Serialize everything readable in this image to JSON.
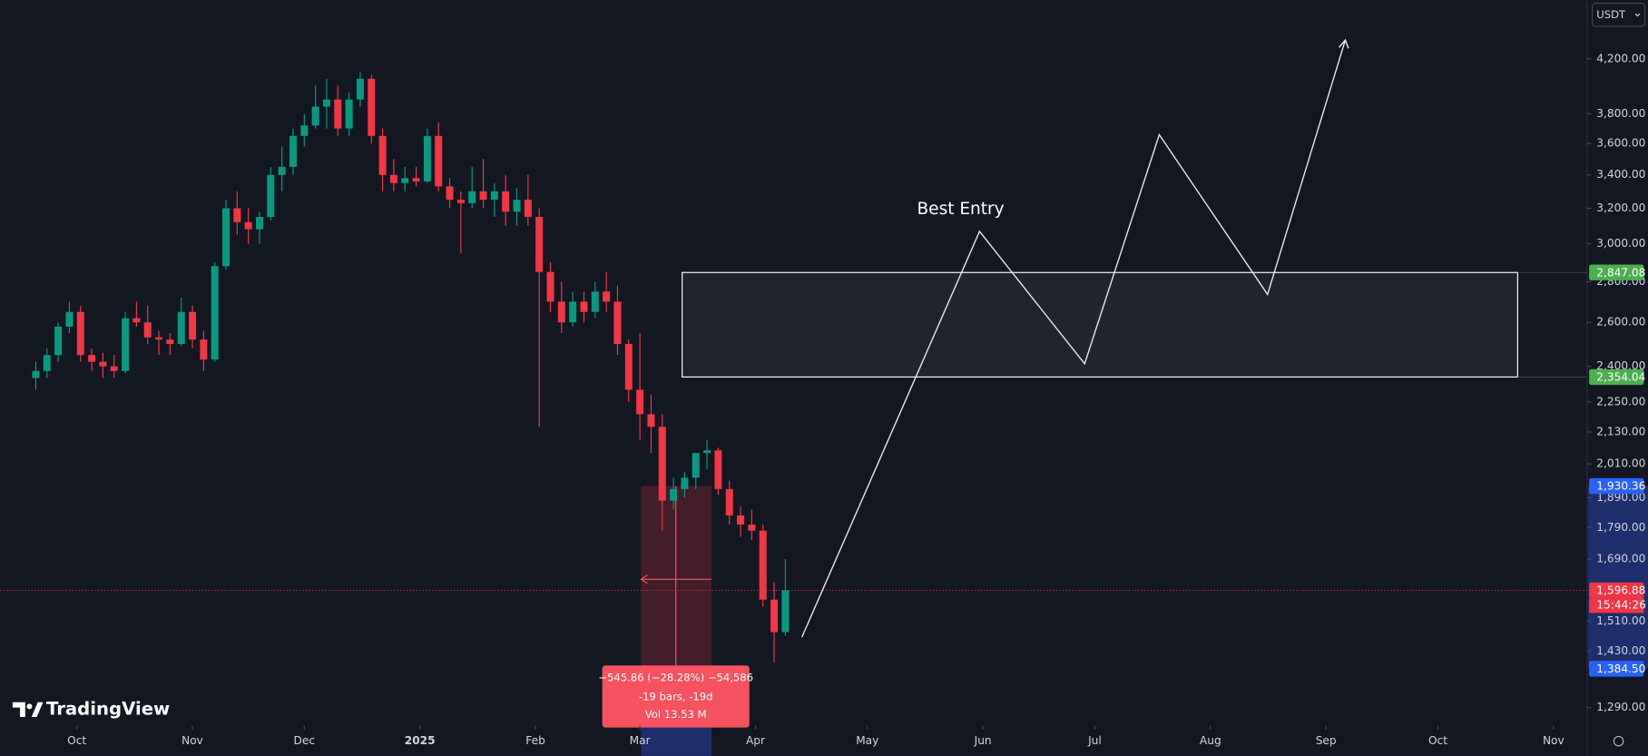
{
  "chart_data": {
    "type": "candlestick",
    "log_scale": true,
    "x": [
      -11,
      -8,
      -5,
      -2,
      1,
      4,
      7,
      10,
      13,
      16,
      19,
      22,
      25,
      28,
      31,
      34,
      37,
      40,
      43,
      46,
      49,
      52,
      55,
      58,
      61,
      64,
      67,
      70,
      73,
      76,
      79,
      82,
      85,
      88,
      91,
      94,
      97,
      100,
      103,
      106,
      109,
      112,
      115,
      118,
      121,
      124,
      127,
      130,
      133,
      136,
      139,
      142,
      145,
      148,
      151,
      154,
      157,
      160,
      163,
      166,
      169,
      172,
      175,
      178,
      181,
      184,
      187,
      190
    ],
    "open": [
      2350,
      2380,
      2450,
      2580,
      2650,
      2450,
      2420,
      2400,
      2380,
      2620,
      2600,
      2530,
      2520,
      2500,
      2650,
      2520,
      2430,
      2880,
      3200,
      3120,
      3080,
      3150,
      3400,
      3450,
      3650,
      3720,
      3850,
      3900,
      3700,
      3900,
      4050,
      3650,
      3400,
      3350,
      3380,
      3360,
      3650,
      3330,
      3250,
      3230,
      3300,
      3250,
      3300,
      3180,
      3250,
      3150,
      2850,
      2700,
      2600,
      2700,
      2650,
      2750,
      2700,
      2500,
      2300,
      2200,
      2150,
      1880,
      1920,
      1960,
      2050,
      2060,
      1920,
      1830,
      1800,
      1780,
      1570,
      1480
    ],
    "high": [
      2420,
      2480,
      2600,
      2700,
      2680,
      2480,
      2460,
      2450,
      2650,
      2700,
      2680,
      2560,
      2550,
      2720,
      2680,
      2560,
      2900,
      3250,
      3300,
      3200,
      3180,
      3450,
      3580,
      3700,
      3800,
      4000,
      4050,
      4000,
      3950,
      4100,
      4080,
      3700,
      3500,
      3450,
      3450,
      3700,
      3740,
      3380,
      3300,
      3450,
      3500,
      3350,
      3400,
      3320,
      3400,
      3200,
      2900,
      2800,
      2750,
      2750,
      2800,
      2850,
      2780,
      2520,
      2550,
      2280,
      2200,
      1960,
      1980,
      2050,
      2100,
      2070,
      1950,
      1860,
      1850,
      1800,
      1620,
      1690
    ],
    "low": [
      2300,
      2350,
      2420,
      2550,
      2420,
      2380,
      2350,
      2350,
      2370,
      2580,
      2500,
      2450,
      2450,
      2490,
      2480,
      2380,
      2420,
      2860,
      3050,
      3000,
      3000,
      3130,
      3300,
      3400,
      3580,
      3700,
      3700,
      3650,
      3650,
      3850,
      3600,
      3300,
      3300,
      3300,
      3330,
      3350,
      3300,
      3200,
      2950,
      3200,
      3200,
      3150,
      3100,
      3100,
      3100,
      2150,
      2650,
      2550,
      2580,
      2600,
      2620,
      2650,
      2450,
      2250,
      2100,
      2050,
      1780,
      1850,
      1890,
      1920,
      1990,
      1900,
      1800,
      1760,
      1750,
      1550,
      1400,
      1470
    ],
    "close": [
      2380,
      2450,
      2580,
      2650,
      2450,
      2420,
      2400,
      2380,
      2620,
      2600,
      2530,
      2520,
      2500,
      2650,
      2520,
      2430,
      2880,
      3200,
      3120,
      3080,
      3150,
      3400,
      3450,
      3650,
      3720,
      3850,
      3900,
      3700,
      3900,
      4050,
      3650,
      3400,
      3350,
      3380,
      3360,
      3650,
      3330,
      3250,
      3230,
      3300,
      3250,
      3300,
      3180,
      3250,
      3150,
      2850,
      2700,
      2600,
      2700,
      2650,
      2750,
      2700,
      2500,
      2300,
      2200,
      2150,
      1880,
      1920,
      1960,
      2050,
      2060,
      1920,
      1830,
      1800,
      1780,
      1570,
      1480,
      1597
    ],
    "up_color": "#089981",
    "down_color": "#f23645",
    "ylim": [
      1249,
      4673
    ],
    "yticks": [
      {
        "value": 4200,
        "label": "4,200.00"
      },
      {
        "value": 3800,
        "label": "3,800.00"
      },
      {
        "value": 3600,
        "label": "3,600.00"
      },
      {
        "value": 3400,
        "label": "3,400.00"
      },
      {
        "value": 3200,
        "label": "3,200.00"
      },
      {
        "value": 3000,
        "label": "3,000.00"
      },
      {
        "value": 2800,
        "label": "2,800.00"
      },
      {
        "value": 2600,
        "label": "2,600.00"
      },
      {
        "value": 2400,
        "label": "2,400.00"
      },
      {
        "value": 2250,
        "label": "2,250.00"
      },
      {
        "value": 2130,
        "label": "2,130.00"
      },
      {
        "value": 2010,
        "label": "2,010.00"
      },
      {
        "value": 1890,
        "label": "1,890.00"
      },
      {
        "value": 1790,
        "label": "1,790.00"
      },
      {
        "value": 1690,
        "label": "1,690.00"
      },
      {
        "value": 1510,
        "label": "1,510.00"
      },
      {
        "value": 1430,
        "label": "1,430.00"
      },
      {
        "value": 1290,
        "label": "1,290.00"
      }
    ],
    "xlim": [
      -20.6,
      405
    ],
    "xticks": [
      {
        "value": 0,
        "label": "Oct"
      },
      {
        "value": 31,
        "label": "Nov"
      },
      {
        "value": 61,
        "label": "Dec"
      },
      {
        "value": 92,
        "label": "2025"
      },
      {
        "value": 123,
        "label": "Feb"
      },
      {
        "value": 151,
        "label": "Mar"
      },
      {
        "value": 182,
        "label": "Apr"
      },
      {
        "value": 212,
        "label": "May"
      },
      {
        "value": 243,
        "label": "Jun"
      },
      {
        "value": 273,
        "label": "Jul"
      },
      {
        "value": 304,
        "label": "Aug"
      },
      {
        "value": 335,
        "label": "Sep"
      },
      {
        "value": 365,
        "label": "Oct"
      },
      {
        "value": 396,
        "label": "Nov"
      }
    ],
    "price_tags": [
      {
        "value": 2847.08,
        "label": "2,847.08",
        "color": "#4caf50"
      },
      {
        "value": 2354.04,
        "label": "2,354.04",
        "color": "#4caf50"
      },
      {
        "value": 1930.36,
        "label": "1,930.36",
        "color": "#2962ff"
      },
      {
        "value": 1596.88,
        "label": "1,596.88",
        "color": "#f23645"
      },
      {
        "value": 1384.5,
        "label": "1,384.50",
        "color": "#2962ff"
      }
    ],
    "countdown": "15:44:26",
    "zone": {
      "top": 2847.08,
      "bottom": 2354.04
    },
    "annotation": "Best Entry",
    "measure": [
      "−545.86 (−28.28%) −54,586",
      "-19 bars, -19d",
      "Vol 13.53 M"
    ],
    "currency": "USDT",
    "brand": "TradingView"
  }
}
